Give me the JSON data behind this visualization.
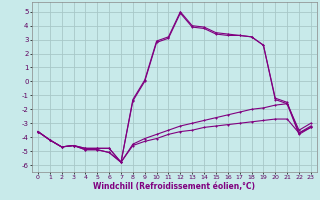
{
  "xlabel": "Windchill (Refroidissement éolien,°C)",
  "xlim": [
    -0.5,
    23.5
  ],
  "ylim": [
    -6.5,
    5.7
  ],
  "xticks": [
    0,
    1,
    2,
    3,
    4,
    5,
    6,
    7,
    8,
    9,
    10,
    11,
    12,
    13,
    14,
    15,
    16,
    17,
    18,
    19,
    20,
    21,
    22,
    23
  ],
  "yticks": [
    -6,
    -5,
    -4,
    -3,
    -2,
    -1,
    0,
    1,
    2,
    3,
    4,
    5
  ],
  "bg_color": "#c8eaea",
  "line_color": "#800080",
  "grid_color": "#a8c8c8",
  "line1_x": [
    0,
    1,
    2,
    3,
    4,
    5,
    6,
    7,
    8,
    9,
    10,
    11,
    12,
    13,
    14,
    15,
    16,
    17,
    18,
    19,
    20,
    21,
    22,
    23
  ],
  "line1_y": [
    -3.6,
    -4.2,
    -4.7,
    -4.6,
    -4.9,
    -4.9,
    -5.1,
    -5.8,
    -4.6,
    -4.3,
    -4.1,
    -3.8,
    -3.6,
    -3.5,
    -3.3,
    -3.2,
    -3.1,
    -3.0,
    -2.9,
    -2.8,
    -2.7,
    -2.7,
    -3.7,
    -3.3
  ],
  "line2_x": [
    0,
    1,
    2,
    3,
    4,
    5,
    6,
    7,
    8,
    9,
    10,
    11,
    12,
    13,
    14,
    15,
    16,
    17,
    18,
    19,
    20,
    21,
    22,
    23
  ],
  "line2_y": [
    -3.6,
    -4.2,
    -4.7,
    -4.6,
    -4.9,
    -4.9,
    -5.1,
    -5.8,
    -4.5,
    -4.1,
    -3.8,
    -3.5,
    -3.2,
    -3.0,
    -2.8,
    -2.6,
    -2.4,
    -2.2,
    -2.0,
    -1.9,
    -1.7,
    -1.6,
    -3.5,
    -3.0
  ],
  "line3_x": [
    0,
    1,
    2,
    3,
    4,
    5,
    6,
    7,
    8,
    9,
    10,
    11,
    12,
    13,
    14,
    15,
    16,
    17,
    18,
    19,
    20,
    21,
    22,
    23
  ],
  "line3_y": [
    -3.6,
    -4.2,
    -4.7,
    -4.6,
    -4.8,
    -4.8,
    -4.8,
    -5.8,
    -1.4,
    0.0,
    2.8,
    3.1,
    4.9,
    3.9,
    3.8,
    3.4,
    3.3,
    3.3,
    3.2,
    2.6,
    -1.3,
    -1.6,
    -3.8,
    -3.3
  ],
  "line4_x": [
    0,
    1,
    2,
    3,
    4,
    5,
    6,
    7,
    8,
    9,
    10,
    11,
    12,
    13,
    14,
    15,
    16,
    17,
    18,
    19,
    20,
    21,
    22,
    23
  ],
  "line4_y": [
    -3.6,
    -4.2,
    -4.7,
    -4.6,
    -4.8,
    -4.8,
    -4.8,
    -5.8,
    -1.3,
    0.1,
    2.9,
    3.2,
    5.0,
    4.0,
    3.9,
    3.5,
    3.4,
    3.3,
    3.2,
    2.6,
    -1.2,
    -1.5,
    -3.7,
    -3.2
  ]
}
